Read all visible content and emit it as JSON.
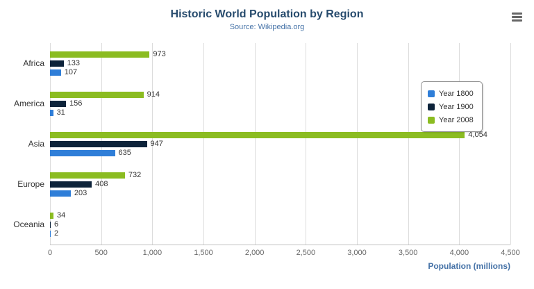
{
  "header": {
    "title": "Historic World Population by Region",
    "subtitle": "Source: Wikipedia.org"
  },
  "chart_data": {
    "type": "bar",
    "orientation": "horizontal",
    "categories": [
      "Africa",
      "America",
      "Asia",
      "Europe",
      "Oceania"
    ],
    "series": [
      {
        "name": "Year 1800",
        "color": "#2f7ed8",
        "values": [
          107,
          31,
          635,
          203,
          2
        ]
      },
      {
        "name": "Year 1900",
        "color": "#0d233a",
        "values": [
          133,
          156,
          947,
          408,
          6
        ]
      },
      {
        "name": "Year 2008",
        "color": "#8bbc21",
        "values": [
          973,
          914,
          4054,
          732,
          34
        ]
      }
    ],
    "bar_display_order": [
      "Year 2008",
      "Year 1900",
      "Year 1800"
    ],
    "title": "Historic World Population by Region",
    "subtitle": "Source: Wikipedia.org",
    "xlabel": "Population (millions)",
    "ylabel": "",
    "xlim": [
      0,
      4500
    ],
    "x_ticks": [
      0,
      500,
      1000,
      1500,
      2000,
      2500,
      3000,
      3500,
      4000,
      4500
    ],
    "x_tick_labels": [
      "0",
      "500",
      "1,000",
      "1,500",
      "2,000",
      "2,500",
      "3,000",
      "3,500",
      "4,000",
      "4,500"
    ],
    "grid": true,
    "legend_position": "right"
  },
  "icons": {
    "menu": "hamburger-menu-icon"
  },
  "colors": {
    "title": "#274b6d",
    "subtitle": "#4572a7",
    "axis_title": "#4572a7",
    "gridline": "#dcdcdc"
  }
}
